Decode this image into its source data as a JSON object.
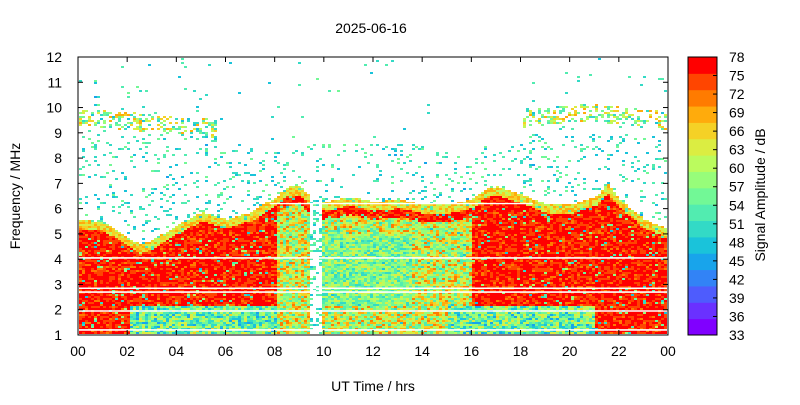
{
  "chart_data": {
    "type": "heatmap",
    "title": "2025-06-16",
    "xlabel": "UT Time / hrs",
    "ylabel": "Frequency / MHz",
    "colorbar_label": "Signal Amplitude / dB",
    "xlim": [
      0,
      24
    ],
    "ylim": [
      1,
      12
    ],
    "x_ticks": [
      "00",
      "02",
      "04",
      "06",
      "08",
      "10",
      "12",
      "14",
      "16",
      "18",
      "20",
      "22",
      "00"
    ],
    "y_ticks": [
      "1",
      "2",
      "3",
      "4",
      "5",
      "6",
      "7",
      "8",
      "9",
      "10",
      "11",
      "12"
    ],
    "colorbar_range": [
      33,
      78
    ],
    "colorbar_ticks": [
      "33",
      "36",
      "39",
      "42",
      "45",
      "48",
      "51",
      "54",
      "57",
      "60",
      "63",
      "66",
      "69",
      "72",
      "75",
      "78"
    ],
    "colorbar_colors": [
      "#8000ff",
      "#6a31ff",
      "#4e5cfd",
      "#3283f6",
      "#18a4eb",
      "#1ac3da",
      "#33dac6",
      "#52ecb0",
      "#72f896",
      "#97fd7a",
      "#bbfb5e",
      "#dbed42",
      "#f5d126",
      "#ffab0c",
      "#ff7b00",
      "#ff4500",
      "#ff0000"
    ],
    "upper_boundary_profile": {
      "description_hours": [
        0,
        1,
        2,
        2.5,
        3,
        4,
        5,
        6,
        7,
        8,
        8.5,
        9,
        9.5,
        10,
        11,
        12,
        13,
        14,
        15,
        16,
        16.5,
        17,
        18,
        19,
        20,
        21,
        21.5,
        22,
        23,
        24
      ],
      "freq_mhz": [
        5.6,
        5.5,
        4.9,
        4.6,
        4.8,
        5.4,
        5.9,
        5.6,
        5.9,
        6.5,
        6.9,
        6.9,
        6.4,
        6.3,
        6.5,
        6.3,
        6.4,
        6.2,
        6.2,
        6.4,
        6.8,
        6.9,
        6.6,
        6.2,
        6.2,
        6.5,
        7.0,
        6.4,
        5.6,
        5.2
      ]
    },
    "high_trace_profile": {
      "description_hours": [
        0,
        1,
        2,
        3,
        4,
        5,
        5.5,
        18,
        19,
        20,
        21,
        22,
        23,
        24
      ],
      "freq_mhz": [
        9.7,
        9.6,
        9.5,
        9.4,
        9.3,
        9.3,
        9.2,
        9.6,
        9.7,
        9.8,
        9.8,
        9.7,
        9.6,
        9.5
      ]
    },
    "gap_lines_mhz": [
      4.05,
      2.85,
      2.7,
      1.95,
      1.2
    ]
  }
}
